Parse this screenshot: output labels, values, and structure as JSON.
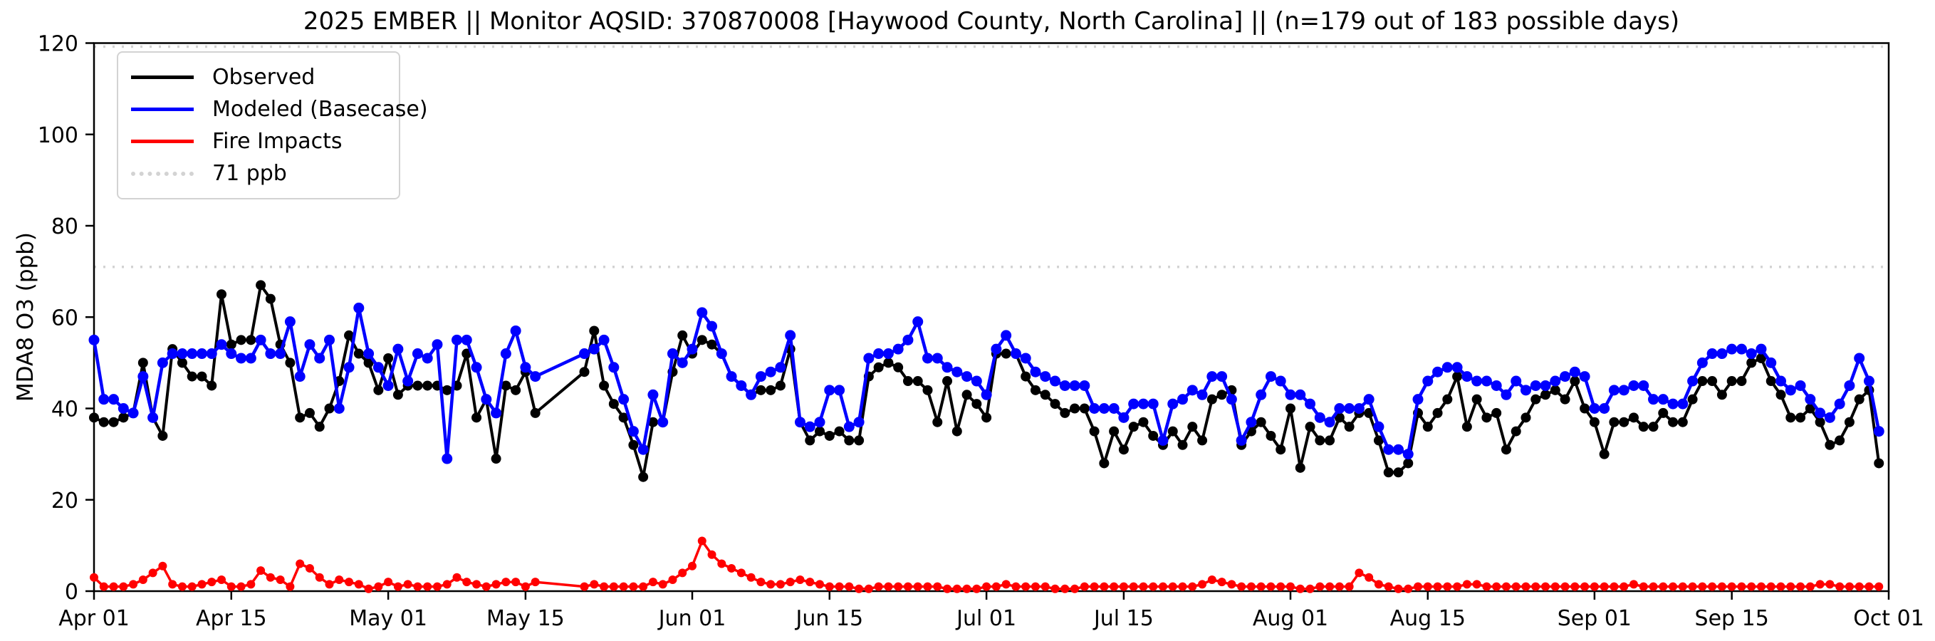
{
  "chart_data": {
    "type": "line",
    "title": "2025 EMBER || Monitor AQSID: 370870008 [Haywood County, North Carolina] || (n=179 out of 183 possible days)",
    "ylabel": "MDA8 O3 (ppb)",
    "xlabel": "",
    "ylim": [
      0,
      120
    ],
    "yticks": [
      0,
      20,
      40,
      60,
      80,
      100,
      120
    ],
    "x_start_date": "Apr 01",
    "x_end_date": "Sep 30",
    "days_total": 183,
    "days_observed": 179,
    "missing_observed_dates": [
      "May 17",
      "May 18",
      "May 19",
      "May 20"
    ],
    "grid": false,
    "legend_position": "upper left",
    "threshold": {
      "value": 71,
      "label": "71 ppb",
      "color": "#d3d3d3",
      "style": "dotted"
    },
    "extra_reference_line": {
      "value": 119.5,
      "color": "#d3d3d3",
      "style": "dotted"
    },
    "x_ticks": [
      {
        "label": "Apr 01",
        "day": 0
      },
      {
        "label": "Apr 15",
        "day": 14
      },
      {
        "label": "May 01",
        "day": 30
      },
      {
        "label": "May 15",
        "day": 44
      },
      {
        "label": "Jun 01",
        "day": 61
      },
      {
        "label": "Jun 15",
        "day": 75
      },
      {
        "label": "Jul 01",
        "day": 91
      },
      {
        "label": "Jul 15",
        "day": 105
      },
      {
        "label": "Aug 01",
        "day": 122
      },
      {
        "label": "Aug 15",
        "day": 136
      },
      {
        "label": "Sep 01",
        "day": 153
      },
      {
        "label": "Sep 15",
        "day": 167
      },
      {
        "label": "Oct 01",
        "day": 183
      }
    ],
    "series": [
      {
        "name": "Observed",
        "color": "#000000",
        "values": [
          38,
          37,
          37,
          38,
          39,
          50,
          38,
          34,
          53,
          50,
          47,
          47,
          45,
          65,
          54,
          55,
          55,
          67,
          64,
          54,
          50,
          38,
          39,
          36,
          40,
          46,
          56,
          52,
          50,
          44,
          51,
          43,
          45,
          45,
          45,
          45,
          44,
          45,
          52,
          38,
          42,
          29,
          45,
          44,
          48,
          39,
          null,
          null,
          null,
          null,
          48,
          57,
          45,
          41,
          38,
          32,
          25,
          37,
          37,
          48,
          56,
          52,
          55,
          54,
          52,
          47,
          45,
          43,
          44,
          44,
          45,
          53,
          37,
          33,
          35,
          34,
          35,
          33,
          33,
          47,
          49,
          50,
          49,
          46,
          46,
          44,
          37,
          46,
          35,
          43,
          41,
          38,
          52,
          52,
          52,
          47,
          44,
          43,
          41,
          39,
          40,
          40,
          35,
          28,
          35,
          31,
          36,
          37,
          34,
          32,
          35,
          32,
          36,
          33,
          42,
          43,
          44,
          32,
          35,
          37,
          34,
          31,
          40,
          27,
          36,
          33,
          33,
          38,
          36,
          39,
          39,
          33,
          26,
          26,
          28,
          39,
          36,
          39,
          42,
          47,
          36,
          42,
          38,
          39,
          31,
          35,
          38,
          42,
          43,
          44,
          42,
          46,
          40,
          37,
          30,
          37,
          37,
          38,
          36,
          36,
          39,
          37,
          37,
          42,
          46,
          46,
          43,
          46,
          46,
          50,
          51,
          46,
          43,
          38,
          38,
          40,
          37,
          32,
          33,
          37,
          42,
          44,
          28
        ]
      },
      {
        "name": "Modeled (Basecase)",
        "color": "#0000ff",
        "values": [
          55,
          42,
          42,
          40,
          39,
          47,
          38,
          50,
          52,
          52,
          52,
          52,
          52,
          54,
          52,
          51,
          51,
          55,
          52,
          52,
          59,
          47,
          54,
          51,
          55,
          40,
          49,
          62,
          52,
          49,
          45,
          53,
          46,
          52,
          51,
          54,
          29,
          55,
          55,
          49,
          42,
          39,
          52,
          57,
          49,
          47,
          null,
          null,
          null,
          null,
          52,
          53,
          55,
          49,
          42,
          35,
          31,
          43,
          37,
          52,
          50,
          53,
          61,
          58,
          52,
          47,
          45,
          43,
          47,
          48,
          49,
          56,
          37,
          36,
          37,
          44,
          44,
          36,
          37,
          51,
          52,
          52,
          53,
          55,
          59,
          51,
          51,
          49,
          48,
          47,
          46,
          43,
          53,
          56,
          52,
          51,
          48,
          47,
          46,
          45,
          45,
          45,
          40,
          40,
          40,
          38,
          41,
          41,
          41,
          33,
          41,
          42,
          44,
          43,
          47,
          47,
          42,
          33,
          37,
          43,
          47,
          46,
          43,
          43,
          41,
          38,
          37,
          40,
          40,
          40,
          42,
          36,
          31,
          31,
          30,
          42,
          46,
          48,
          49,
          49,
          47,
          46,
          46,
          45,
          43,
          46,
          44,
          45,
          45,
          46,
          47,
          48,
          47,
          40,
          40,
          44,
          44,
          45,
          45,
          42,
          42,
          41,
          41,
          46,
          50,
          52,
          52,
          53,
          53,
          52,
          53,
          50,
          46,
          44,
          45,
          42,
          39,
          38,
          41,
          45,
          51,
          46,
          35
        ]
      },
      {
        "name": "Fire Impacts",
        "color": "#ff0000",
        "values": [
          3,
          1,
          1,
          1,
          1.5,
          2.5,
          4,
          5.5,
          1.5,
          1,
          1,
          1.5,
          2,
          2.5,
          1,
          1,
          1.5,
          4.5,
          3,
          2.5,
          1,
          6,
          5,
          3,
          1.5,
          2.5,
          2,
          1.5,
          0.5,
          1,
          2,
          1,
          1.5,
          1,
          1,
          1,
          1.5,
          3,
          2,
          1.5,
          1,
          1.5,
          2,
          2,
          1,
          2,
          null,
          null,
          null,
          null,
          1,
          1.5,
          1,
          1,
          1,
          1,
          1,
          2,
          1.5,
          2.5,
          4,
          5.5,
          11,
          8,
          6,
          5,
          4,
          3,
          2,
          1.5,
          1.5,
          2,
          2.5,
          2,
          1.5,
          1,
          1,
          1,
          0.5,
          0.5,
          1,
          1,
          1,
          1,
          1,
          1,
          1,
          0.5,
          0.5,
          0.5,
          0.5,
          1,
          1,
          1.5,
          1,
          1,
          1,
          1,
          0.5,
          0.5,
          0.5,
          1,
          1,
          1,
          1,
          1,
          1,
          1,
          1,
          1,
          1,
          1,
          1,
          1.5,
          2.5,
          2,
          1.5,
          1,
          1,
          1,
          1,
          1,
          1,
          0.5,
          0.5,
          1,
          1,
          1,
          1,
          4,
          3,
          1.5,
          1,
          0.5,
          0.5,
          1,
          1,
          1,
          1,
          1,
          1.5,
          1.5,
          1,
          1,
          1,
          1,
          1,
          1,
          1,
          1,
          1,
          1,
          1,
          1,
          1,
          1,
          1,
          1.5,
          1,
          1,
          1,
          1,
          1,
          1,
          1,
          1,
          1,
          1,
          1,
          1,
          1,
          1,
          1,
          1,
          1,
          1,
          1.5,
          1.5,
          1,
          1,
          1,
          1,
          1
        ]
      }
    ],
    "legend_entries": [
      "Observed",
      "Modeled (Basecase)",
      "Fire Impacts",
      "71 ppb"
    ]
  }
}
